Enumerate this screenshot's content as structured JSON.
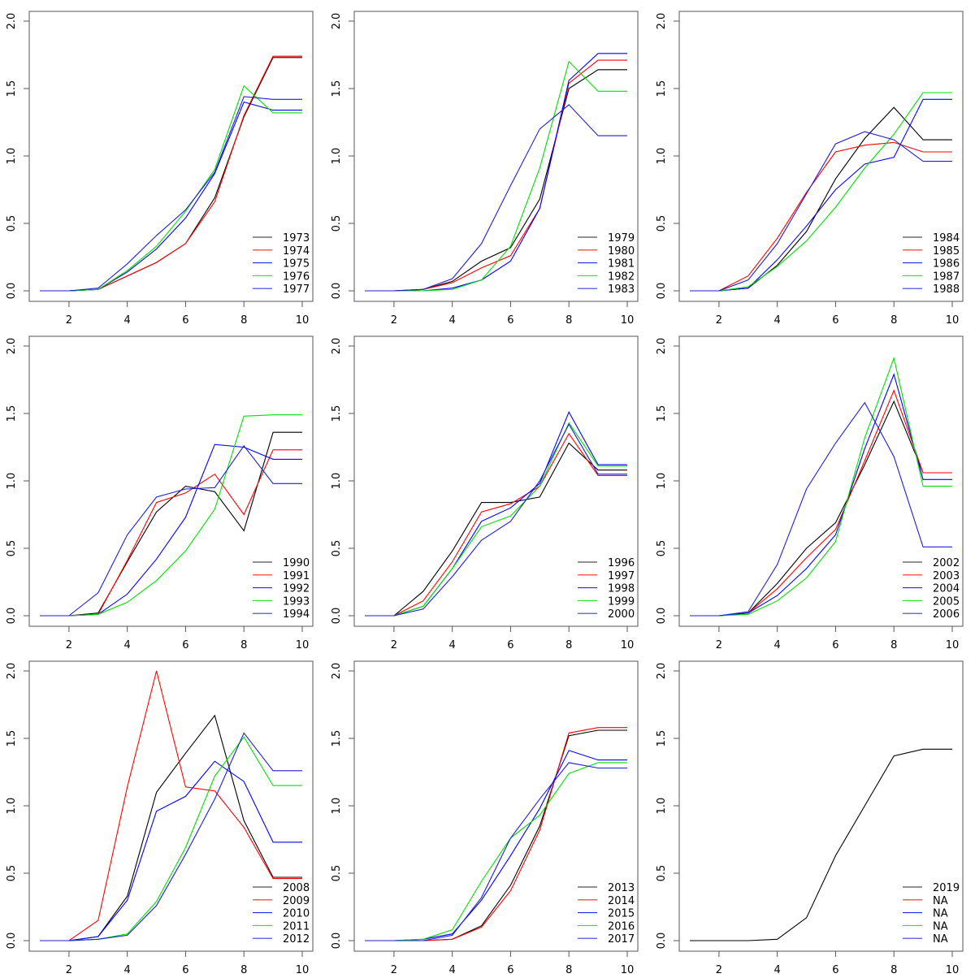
{
  "chart_data": {
    "type": "line",
    "layout": "3x3 grid of small-multiple line plots",
    "x": [
      1,
      2,
      3,
      4,
      5,
      6,
      7,
      8,
      9,
      10
    ],
    "xticks": [
      "2",
      "4",
      "6",
      "8",
      "10"
    ],
    "yticks": [
      "0.0",
      "0.5",
      "1.0",
      "1.5",
      "2.0"
    ],
    "xlim": [
      1,
      10
    ],
    "ylim": [
      0,
      2
    ],
    "grid": false,
    "legend_position": "bottom-right",
    "series_colors": [
      "#000000",
      "#FF0000",
      "#0000FF",
      "#00E000",
      "#1F1FD6"
    ],
    "panels": [
      {
        "series": [
          {
            "name": "1973",
            "values": [
              0,
              0,
              0.01,
              0.11,
              0.21,
              0.35,
              0.69,
              1.29,
              1.73,
              1.73
            ]
          },
          {
            "name": "1974",
            "values": [
              0,
              0,
              0.01,
              0.11,
              0.21,
              0.35,
              0.66,
              1.3,
              1.74,
              1.74
            ]
          },
          {
            "name": "1975",
            "values": [
              0,
              0,
              0.01,
              0.14,
              0.31,
              0.54,
              0.87,
              1.4,
              1.34,
              1.34
            ]
          },
          {
            "name": "1976",
            "values": [
              0,
              0,
              0.01,
              0.15,
              0.33,
              0.59,
              0.9,
              1.52,
              1.32,
              1.32
            ]
          },
          {
            "name": "1977",
            "values": [
              0,
              0,
              0.02,
              0.2,
              0.41,
              0.6,
              0.88,
              1.44,
              1.42,
              1.42
            ]
          }
        ]
      },
      {
        "series": [
          {
            "name": "1979",
            "values": [
              0,
              0,
              0.01,
              0.07,
              0.22,
              0.32,
              0.68,
              1.5,
              1.64,
              1.64
            ]
          },
          {
            "name": "1980",
            "values": [
              0,
              0,
              0.01,
              0.06,
              0.17,
              0.26,
              0.61,
              1.54,
              1.71,
              1.71
            ]
          },
          {
            "name": "1981",
            "values": [
              0,
              0,
              0.0,
              0.02,
              0.08,
              0.22,
              0.61,
              1.56,
              1.76,
              1.76
            ]
          },
          {
            "name": "1982",
            "values": [
              0,
              0,
              0.0,
              0.01,
              0.08,
              0.33,
              0.91,
              1.7,
              1.48,
              1.48
            ]
          },
          {
            "name": "1983",
            "values": [
              0,
              0,
              0.01,
              0.09,
              0.35,
              0.78,
              1.2,
              1.38,
              1.15,
              1.15
            ]
          }
        ]
      },
      {
        "series": [
          {
            "name": "1984",
            "values": [
              0,
              0,
              0.02,
              0.19,
              0.44,
              0.83,
              1.13,
              1.36,
              1.12,
              1.12
            ]
          },
          {
            "name": "1985",
            "values": [
              0,
              0,
              0.11,
              0.39,
              0.73,
              1.03,
              1.08,
              1.1,
              1.03,
              1.03
            ]
          },
          {
            "name": "1986",
            "values": [
              0,
              0,
              0.02,
              0.23,
              0.48,
              0.75,
              0.94,
              0.99,
              1.42,
              1.42
            ]
          },
          {
            "name": "1987",
            "values": [
              0,
              0,
              0.03,
              0.18,
              0.37,
              0.62,
              0.91,
              1.16,
              1.47,
              1.47
            ]
          },
          {
            "name": "1988",
            "values": [
              0,
              0,
              0.08,
              0.35,
              0.72,
              1.09,
              1.18,
              1.12,
              0.96,
              0.96
            ]
          }
        ]
      },
      {
        "series": [
          {
            "name": "1990",
            "values": [
              0,
              0,
              0.02,
              0.4,
              0.77,
              0.96,
              0.92,
              0.63,
              1.36,
              1.36
            ]
          },
          {
            "name": "1991",
            "values": [
              0,
              0,
              0.01,
              0.41,
              0.84,
              0.91,
              1.05,
              0.75,
              1.23,
              1.23
            ]
          },
          {
            "name": "1992",
            "values": [
              0,
              0,
              0.01,
              0.16,
              0.42,
              0.73,
              1.27,
              1.25,
              1.16,
              1.16
            ]
          },
          {
            "name": "1993",
            "values": [
              0,
              0,
              0.01,
              0.1,
              0.26,
              0.48,
              0.79,
              1.48,
              1.49,
              1.49
            ]
          },
          {
            "name": "1994",
            "values": [
              0,
              0,
              0.17,
              0.6,
              0.88,
              0.94,
              0.95,
              1.26,
              0.98,
              0.98
            ]
          }
        ]
      },
      {
        "series": [
          {
            "name": "1996",
            "values": [
              0,
              0,
              0.18,
              0.48,
              0.84,
              0.84,
              0.88,
              1.28,
              1.08,
              1.08
            ]
          },
          {
            "name": "1997",
            "values": [
              0,
              0,
              0.11,
              0.4,
              0.77,
              0.83,
              0.96,
              1.35,
              1.04,
              1.04
            ]
          },
          {
            "name": "1998",
            "values": [
              0,
              0,
              0.07,
              0.35,
              0.7,
              0.8,
              0.98,
              1.51,
              1.12,
              1.12
            ]
          },
          {
            "name": "1999",
            "values": [
              0,
              0,
              0.07,
              0.35,
              0.66,
              0.74,
              0.96,
              1.43,
              1.11,
              1.11
            ]
          },
          {
            "name": "2000",
            "values": [
              0,
              0,
              0.05,
              0.29,
              0.56,
              0.7,
              1.0,
              1.42,
              1.05,
              1.05
            ]
          }
        ]
      },
      {
        "series": [
          {
            "name": "2002",
            "values": [
              0,
              0,
              0.02,
              0.24,
              0.5,
              0.69,
              1.12,
              1.59,
              1.06,
              1.06
            ]
          },
          {
            "name": "2003",
            "values": [
              0,
              0,
              0.02,
              0.2,
              0.43,
              0.64,
              1.15,
              1.67,
              1.06,
              1.06
            ]
          },
          {
            "name": "2004",
            "values": [
              0,
              0,
              0.02,
              0.15,
              0.35,
              0.6,
              1.24,
              1.79,
              1.01,
              1.01
            ]
          },
          {
            "name": "2005",
            "values": [
              0,
              0,
              0.01,
              0.11,
              0.28,
              0.55,
              1.32,
              1.91,
              0.96,
              0.96
            ]
          },
          {
            "name": "2006",
            "values": [
              0,
              0,
              0.03,
              0.38,
              0.94,
              1.28,
              1.58,
              1.18,
              0.51,
              0.51
            ]
          }
        ]
      },
      {
        "series": [
          {
            "name": "2008",
            "values": [
              0,
              0,
              0.03,
              0.33,
              1.1,
              1.39,
              1.67,
              0.89,
              0.47,
              0.47
            ]
          },
          {
            "name": "2009",
            "values": [
              0,
              0,
              0.15,
              1.14,
              2.0,
              1.14,
              1.11,
              0.84,
              0.46,
              0.46
            ]
          },
          {
            "name": "2010",
            "values": [
              0,
              0,
              0.03,
              0.3,
              0.96,
              1.07,
              1.33,
              1.18,
              0.73,
              0.73
            ]
          },
          {
            "name": "2011",
            "values": [
              0,
              0,
              0.01,
              0.05,
              0.29,
              0.69,
              1.22,
              1.51,
              1.15,
              1.15
            ]
          },
          {
            "name": "2012",
            "values": [
              0,
              0,
              0.01,
              0.04,
              0.26,
              0.64,
              1.05,
              1.54,
              1.26,
              1.26
            ]
          }
        ]
      },
      {
        "series": [
          {
            "name": "2013",
            "values": [
              0,
              0,
              0.0,
              0.01,
              0.11,
              0.41,
              0.85,
              1.52,
              1.56,
              1.56
            ]
          },
          {
            "name": "2014",
            "values": [
              0,
              0,
              0.0,
              0.01,
              0.1,
              0.37,
              0.82,
              1.54,
              1.58,
              1.58
            ]
          },
          {
            "name": "2015",
            "values": [
              0,
              0,
              0.01,
              0.05,
              0.3,
              0.63,
              0.98,
              1.41,
              1.34,
              1.34
            ]
          },
          {
            "name": "2016",
            "values": [
              0,
              0,
              0.01,
              0.08,
              0.44,
              0.76,
              0.93,
              1.24,
              1.32,
              1.32
            ]
          },
          {
            "name": "2017",
            "values": [
              0,
              0,
              0.0,
              0.04,
              0.32,
              0.76,
              1.05,
              1.32,
              1.28,
              1.28
            ]
          }
        ]
      },
      {
        "series": [
          {
            "name": "2019",
            "values": [
              0,
              0,
              0.0,
              0.01,
              0.17,
              0.63,
              1.0,
              1.37,
              1.42,
              1.42
            ]
          },
          {
            "name": "NA",
            "values": null
          },
          {
            "name": "NA",
            "values": null
          },
          {
            "name": "NA",
            "values": null
          },
          {
            "name": "NA",
            "values": null
          }
        ]
      }
    ]
  }
}
